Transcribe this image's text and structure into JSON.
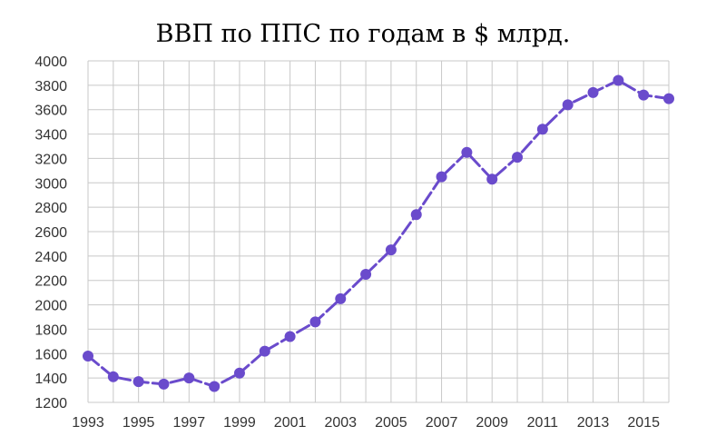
{
  "chart_data": {
    "type": "line",
    "title": "ВВП по ППС по годам в $ млрд.",
    "xlabel": "",
    "ylabel": "",
    "x": [
      1993,
      1994,
      1995,
      1996,
      1997,
      1998,
      1999,
      2000,
      2001,
      2002,
      2003,
      2004,
      2005,
      2006,
      2007,
      2008,
      2009,
      2010,
      2011,
      2012,
      2013,
      2014,
      2015,
      2016
    ],
    "series": [
      {
        "values": [
          1580,
          1410,
          1370,
          1350,
          1400,
          1330,
          1440,
          1620,
          1740,
          1860,
          2050,
          2250,
          2450,
          2740,
          3050,
          3250,
          3030,
          3210,
          3440,
          3640,
          3740,
          3840,
          3720,
          3690
        ],
        "color": "#6a4bcc"
      }
    ],
    "xlim": [
      1993,
      2016
    ],
    "x_tick_labels": [
      "1993",
      "1995",
      "1997",
      "1999",
      "2001",
      "2003",
      "2005",
      "2007",
      "2009",
      "2011",
      "2013",
      "2015"
    ],
    "ylim": [
      1200,
      4000
    ],
    "y_tick_labels": [
      "1200",
      "1400",
      "1600",
      "1800",
      "2000",
      "2200",
      "2400",
      "2600",
      "2800",
      "3000",
      "3200",
      "3400",
      "3600",
      "3800",
      "4000"
    ],
    "grid": true,
    "line_style": "dashed",
    "markers": true,
    "legend": "none"
  }
}
